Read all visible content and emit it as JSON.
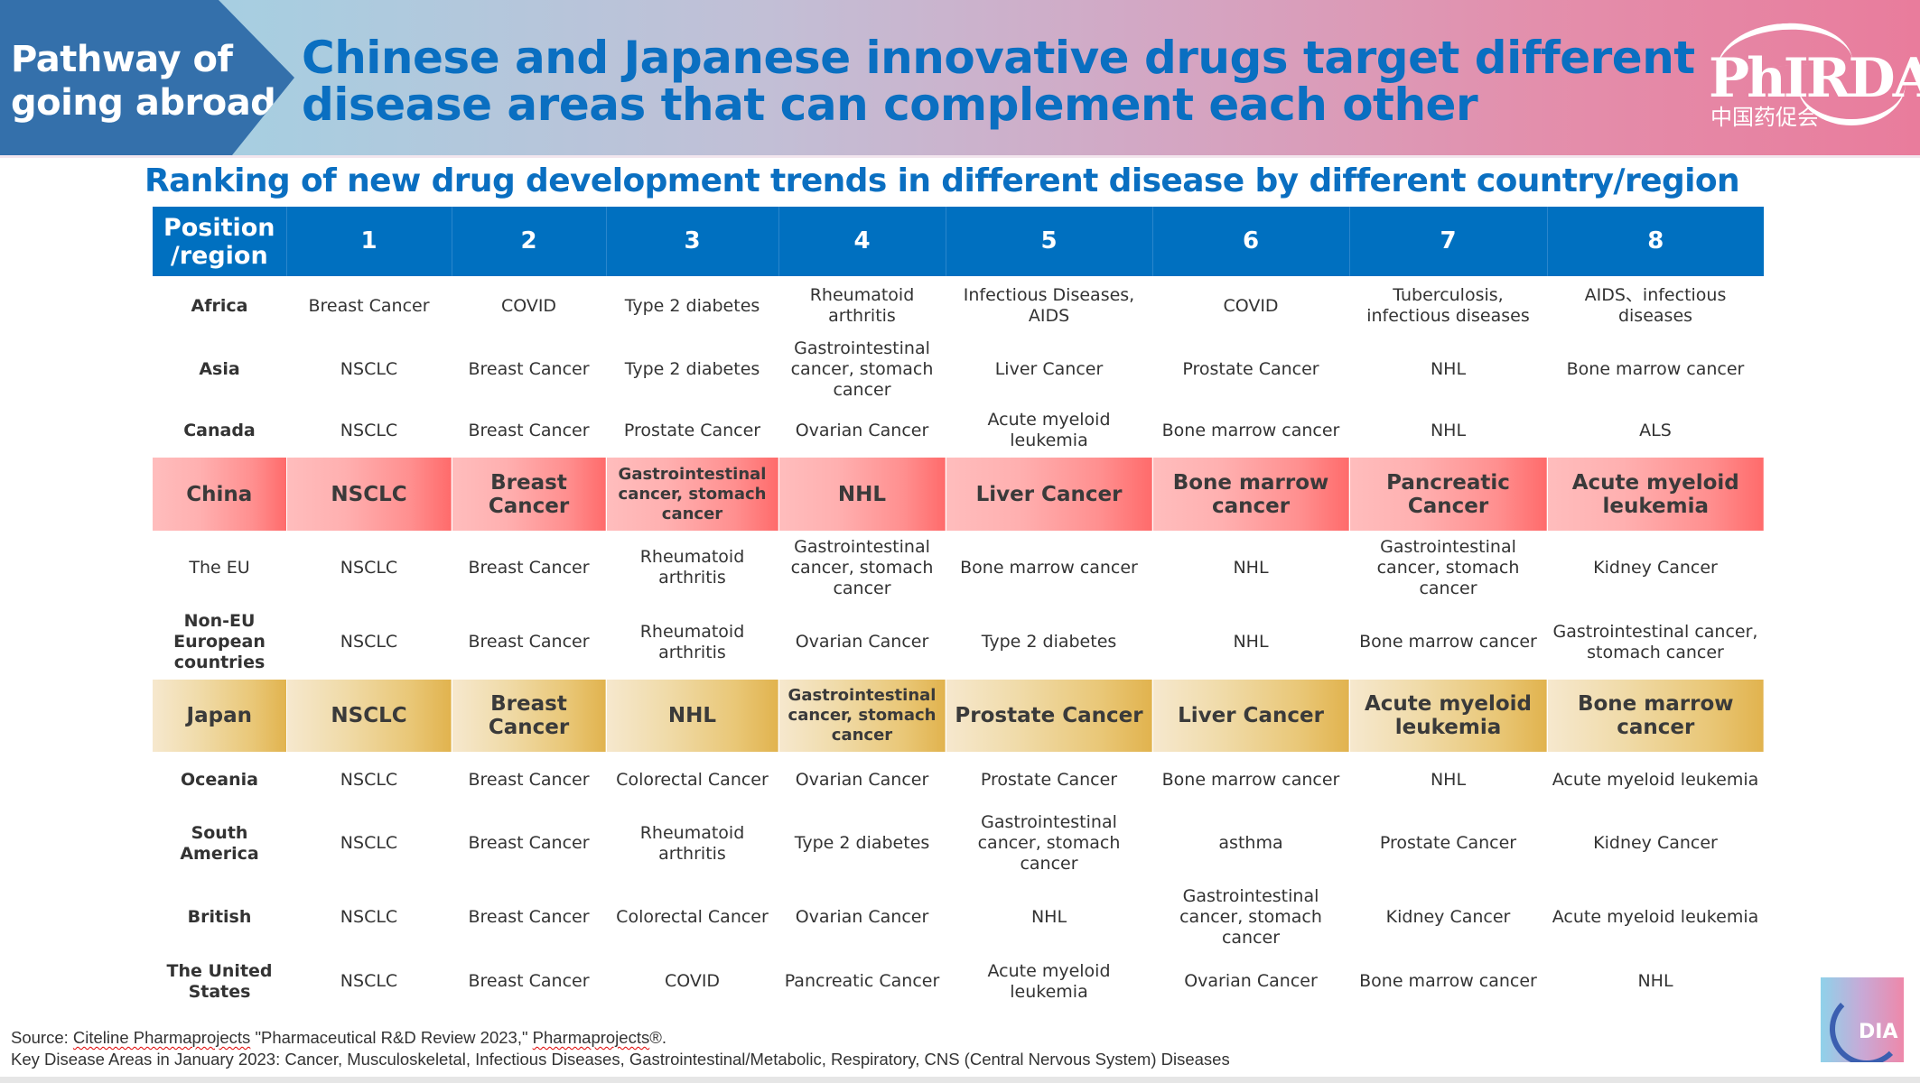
{
  "header": {
    "section_label": "Pathway of going abroad",
    "title": "Chinese and Japanese innovative drugs target different disease areas that can complement each other",
    "logo": {
      "name": "PhIRDA",
      "subtext": "中国药促会"
    }
  },
  "subtitle": "Ranking of new drug development trends in different disease by different country/region",
  "colors": {
    "header_blue": "#0070C0",
    "arrow_blue": "#3470AB",
    "china_highlight": "#FF6B6B",
    "japan_highlight": "#E1B34E"
  },
  "table": {
    "columns": [
      "Position /region",
      "1",
      "2",
      "3",
      "4",
      "5",
      "6",
      "7",
      "8"
    ],
    "rows": [
      {
        "region": "Africa",
        "highlight": "none",
        "cells": [
          "Breast Cancer",
          "COVID",
          "Type 2 diabetes",
          "Rheumatoid arthritis",
          "Infectious Diseases, AIDS",
          "COVID",
          "Tuberculosis, infectious diseases",
          "AIDS、infectious diseases"
        ]
      },
      {
        "region": "Asia",
        "highlight": "none",
        "cells": [
          "NSCLC",
          "Breast Cancer",
          "Type 2 diabetes",
          "Gastrointestinal cancer, stomach cancer",
          "Liver Cancer",
          "Prostate Cancer",
          "NHL",
          "Bone marrow cancer"
        ]
      },
      {
        "region": "Canada",
        "highlight": "none",
        "cells": [
          "NSCLC",
          "Breast Cancer",
          "Prostate Cancer",
          "Ovarian Cancer",
          "Acute myeloid leukemia",
          "Bone marrow cancer",
          "NHL",
          "ALS"
        ]
      },
      {
        "region": "China",
        "highlight": "china",
        "cells": [
          "NSCLC",
          "Breast Cancer",
          "Gastrointestinal cancer, stomach cancer",
          "NHL",
          "Liver Cancer",
          "Bone marrow cancer",
          "Pancreatic Cancer",
          "Acute myeloid leukemia"
        ]
      },
      {
        "region": "The EU",
        "highlight": "none",
        "cells": [
          "NSCLC",
          "Breast Cancer",
          "Rheumatoid arthritis",
          "Gastrointestinal cancer, stomach cancer",
          "Bone marrow cancer",
          "NHL",
          "Gastrointestinal cancer, stomach cancer",
          "Kidney Cancer"
        ]
      },
      {
        "region": "Non-EU European countries",
        "highlight": "none",
        "cells": [
          "NSCLC",
          "Breast Cancer",
          "Rheumatoid arthritis",
          "Ovarian Cancer",
          "Type 2 diabetes",
          "NHL",
          "Bone marrow cancer",
          "Gastrointestinal  cancer, stomach cancer"
        ]
      },
      {
        "region": "Japan",
        "highlight": "japan",
        "cells": [
          "NSCLC",
          "Breast Cancer",
          "NHL",
          "Gastrointestinal cancer, stomach cancer",
          "Prostate Cancer",
          "Liver Cancer",
          "Acute myeloid leukemia",
          "Bone marrow cancer"
        ]
      },
      {
        "region": "Oceania",
        "highlight": "none",
        "cells": [
          "NSCLC",
          "Breast Cancer",
          "Colorectal Cancer",
          "Ovarian Cancer",
          "Prostate Cancer",
          "Bone marrow cancer",
          "NHL",
          "Acute myeloid leukemia"
        ]
      },
      {
        "region": "South America",
        "highlight": "none",
        "cells": [
          "NSCLC",
          "Breast Cancer",
          "Rheumatoid arthritis",
          "Type 2 diabetes",
          "Gastrointestinal cancer, stomach cancer",
          "asthma",
          "Prostate Cancer",
          "Kidney Cancer"
        ]
      },
      {
        "region": "British",
        "highlight": "none",
        "cells": [
          "NSCLC",
          "Breast Cancer",
          "Colorectal Cancer",
          "Ovarian Cancer",
          "NHL",
          "Gastrointestinal cancer, stomach cancer",
          "Kidney Cancer",
          "Acute myeloid leukemia"
        ]
      },
      {
        "region": "The United States",
        "highlight": "none",
        "cells": [
          "NSCLC",
          "Breast Cancer",
          "COVID",
          "Pancreatic Cancer",
          "Acute myeloid leukemia",
          "Ovarian Cancer",
          "Bone marrow cancer",
          "NHL"
        ]
      }
    ]
  },
  "footer": {
    "source_prefix": "Source: ",
    "source_name": "Citeline Pharmaprojects",
    "source_middle": " \"Pharmaceutical R&D Review 2023,\" ",
    "source_brand": "Pharmaprojects",
    "source_suffix": "®.",
    "key_areas": "Key Disease Areas in January 2023: Cancer, Musculoskeletal, Infectious Diseases, Gastrointestinal/Metabolic, Respiratory, CNS (Central Nervous System) Diseases"
  },
  "corner_logo": {
    "name": "DIA"
  }
}
